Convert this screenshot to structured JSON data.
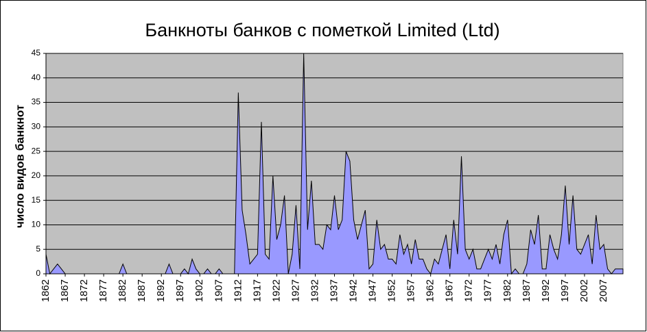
{
  "chart_data": {
    "type": "area",
    "title": "Банкноты банков с пометкой Limited (Ltd)",
    "y_label": "число видов банкнот",
    "categories": [
      "1862",
      null,
      null,
      null,
      null,
      "1867",
      null,
      null,
      null,
      null,
      "1872",
      null,
      null,
      null,
      null,
      "1877",
      null,
      null,
      null,
      null,
      "1882",
      null,
      null,
      null,
      null,
      "1887",
      null,
      null,
      null,
      null,
      "1892",
      null,
      null,
      null,
      null,
      "1897",
      null,
      null,
      null,
      null,
      "1902",
      null,
      null,
      null,
      null,
      "1907",
      null,
      null,
      null,
      null,
      "1912",
      null,
      null,
      null,
      null,
      "1917",
      null,
      null,
      null,
      null,
      "1922",
      null,
      null,
      null,
      null,
      "1927",
      null,
      null,
      null,
      null,
      "1932",
      null,
      null,
      null,
      null,
      "1937",
      null,
      null,
      null,
      null,
      "1942",
      null,
      null,
      null,
      null,
      "1947",
      null,
      null,
      null,
      null,
      "1952",
      null,
      null,
      null,
      null,
      "1957",
      null,
      null,
      null,
      null,
      "1962",
      null,
      null,
      null,
      null,
      "1967",
      null,
      null,
      null,
      null,
      "1972",
      null,
      null,
      null,
      null,
      "1977",
      null,
      null,
      null,
      null,
      "1982",
      null,
      null,
      null,
      null,
      "1987",
      null,
      null,
      null,
      null,
      "1992",
      null,
      null,
      null,
      null,
      "1997",
      null,
      null,
      null,
      null,
      "2002",
      null,
      null,
      null,
      null,
      "2007",
      null,
      null,
      null,
      null,
      null
    ],
    "values": [
      4,
      0,
      1,
      2,
      1,
      0,
      0,
      0,
      0,
      0,
      0,
      0,
      0,
      0,
      0,
      0,
      0,
      0,
      0,
      0,
      2,
      0,
      0,
      0,
      0,
      0,
      0,
      0,
      0,
      0,
      0,
      0,
      2,
      0,
      0,
      0,
      1,
      0,
      3,
      1,
      0,
      0,
      1,
      0,
      0,
      1,
      0,
      0,
      0,
      0,
      37,
      13,
      8,
      2,
      3,
      4,
      31,
      4,
      3,
      20,
      7,
      10,
      16,
      0,
      4,
      14,
      1,
      45,
      9,
      19,
      6,
      6,
      5,
      10,
      9,
      16,
      9,
      11,
      25,
      23,
      11,
      7,
      10,
      13,
      1,
      2,
      11,
      5,
      6,
      3,
      3,
      2,
      8,
      4,
      6,
      2,
      7,
      3,
      3,
      1,
      0,
      3,
      2,
      5,
      8,
      1,
      11,
      4,
      24,
      5,
      3,
      5,
      1,
      1,
      3,
      5,
      3,
      6,
      2,
      8,
      11,
      0,
      1,
      0,
      0,
      2,
      9,
      6,
      12,
      1,
      1,
      8,
      5,
      3,
      8,
      18,
      6,
      16,
      5,
      4,
      6,
      8,
      2,
      12,
      5,
      6,
      1,
      0,
      1,
      1,
      1
    ],
    "color": "#9999ff",
    "ylim": [
      0,
      45
    ],
    "yticks": [
      0,
      5,
      10,
      15,
      20,
      25,
      30,
      35,
      40,
      45
    ],
    "grid": true
  }
}
